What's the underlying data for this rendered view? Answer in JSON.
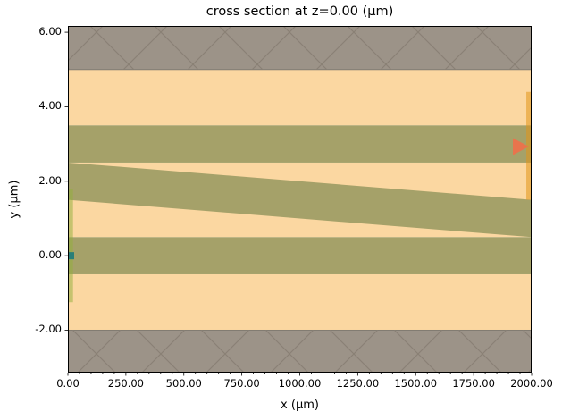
{
  "chart_data": {
    "type": "area",
    "subtype": "layered-cross-section-of-photonic-stack",
    "title": "cross section at z=0.00 (μm)",
    "xlabel": "x (μm)",
    "ylabel": "y (μm)",
    "xlim": [
      0,
      2000
    ],
    "ylim": [
      -3.14,
      6.17
    ],
    "grid": false,
    "legend": null,
    "x_ticks": {
      "values": [
        0,
        250,
        500,
        750,
        1000,
        1250,
        1500,
        1750,
        2000
      ],
      "labels": [
        "0.00",
        "250.00",
        "500.00",
        "750.00",
        "1000.00",
        "1250.00",
        "1500.00",
        "1750.00",
        "2000.00"
      ],
      "minor_step": 50
    },
    "y_ticks": {
      "values": [
        -2,
        0,
        2,
        4,
        6
      ],
      "labels": [
        "-2.00",
        "0.00",
        "2.00",
        "4.00",
        "6.00"
      ]
    },
    "colors": {
      "orange_layer": "#fbd7a1",
      "olive_layer": "#a5a169",
      "hatch_fill": "#9c9388",
      "hatch_line": "#8a8175",
      "hatch_edge": "#827c72",
      "green_strip": "rgba(145,175,60,0.5)",
      "yellow_strip": "rgba(225,150,25,0.55)",
      "teal_marker": "#2a7f78",
      "arrow_marker": "#e8744d",
      "spine": "#000000"
    },
    "regions": [
      {
        "name": "layer-orange-top",
        "y": [
          3.5,
          5.0
        ],
        "color": "#fbd7a1"
      },
      {
        "name": "layer-orange-middle",
        "y": [
          0.5,
          2.5
        ],
        "color": "#fbd7a1"
      },
      {
        "name": "layer-orange-bottom",
        "y": [
          -2.0,
          -0.5
        ],
        "color": "#fbd7a1"
      },
      {
        "name": "layer-olive-upper",
        "y": [
          2.5,
          3.5
        ],
        "color": "#a5a169"
      },
      {
        "name": "layer-olive-lower",
        "y": [
          -0.5,
          0.5
        ],
        "color": "#a5a169"
      },
      {
        "name": "taper-olive-wedge",
        "points": [
          [
            0,
            2.5
          ],
          [
            2000,
            1.5
          ],
          [
            2000,
            0.5
          ],
          [
            0,
            1.5
          ]
        ],
        "color": "#a5a169"
      },
      {
        "name": "hatched-region-top",
        "y": [
          5.0,
          6.17
        ],
        "color": "#9c9388",
        "hatch": true
      },
      {
        "name": "hatched-region-bottom",
        "y": [
          -3.14,
          -2.0
        ],
        "color": "#9c9388",
        "hatch": true
      },
      {
        "name": "left-edge-strip-green",
        "x": [
          0,
          22
        ],
        "y": [
          -1.25,
          1.8
        ],
        "color": "rgba(145,175,60,0.5)"
      },
      {
        "name": "right-edge-strip-yellow",
        "x": [
          1977,
          2000
        ],
        "y": [
          1.5,
          4.4
        ],
        "color": "rgba(225,150,25,0.55)"
      }
    ],
    "markers": [
      {
        "name": "port-marker-left-square",
        "shape": "square",
        "x": 0,
        "y": 0,
        "color": "#2a7f78"
      },
      {
        "name": "port-marker-right-arrow",
        "shape": "triangle-right",
        "x": 2000,
        "y": 2.93,
        "color": "#e8744d"
      }
    ]
  }
}
